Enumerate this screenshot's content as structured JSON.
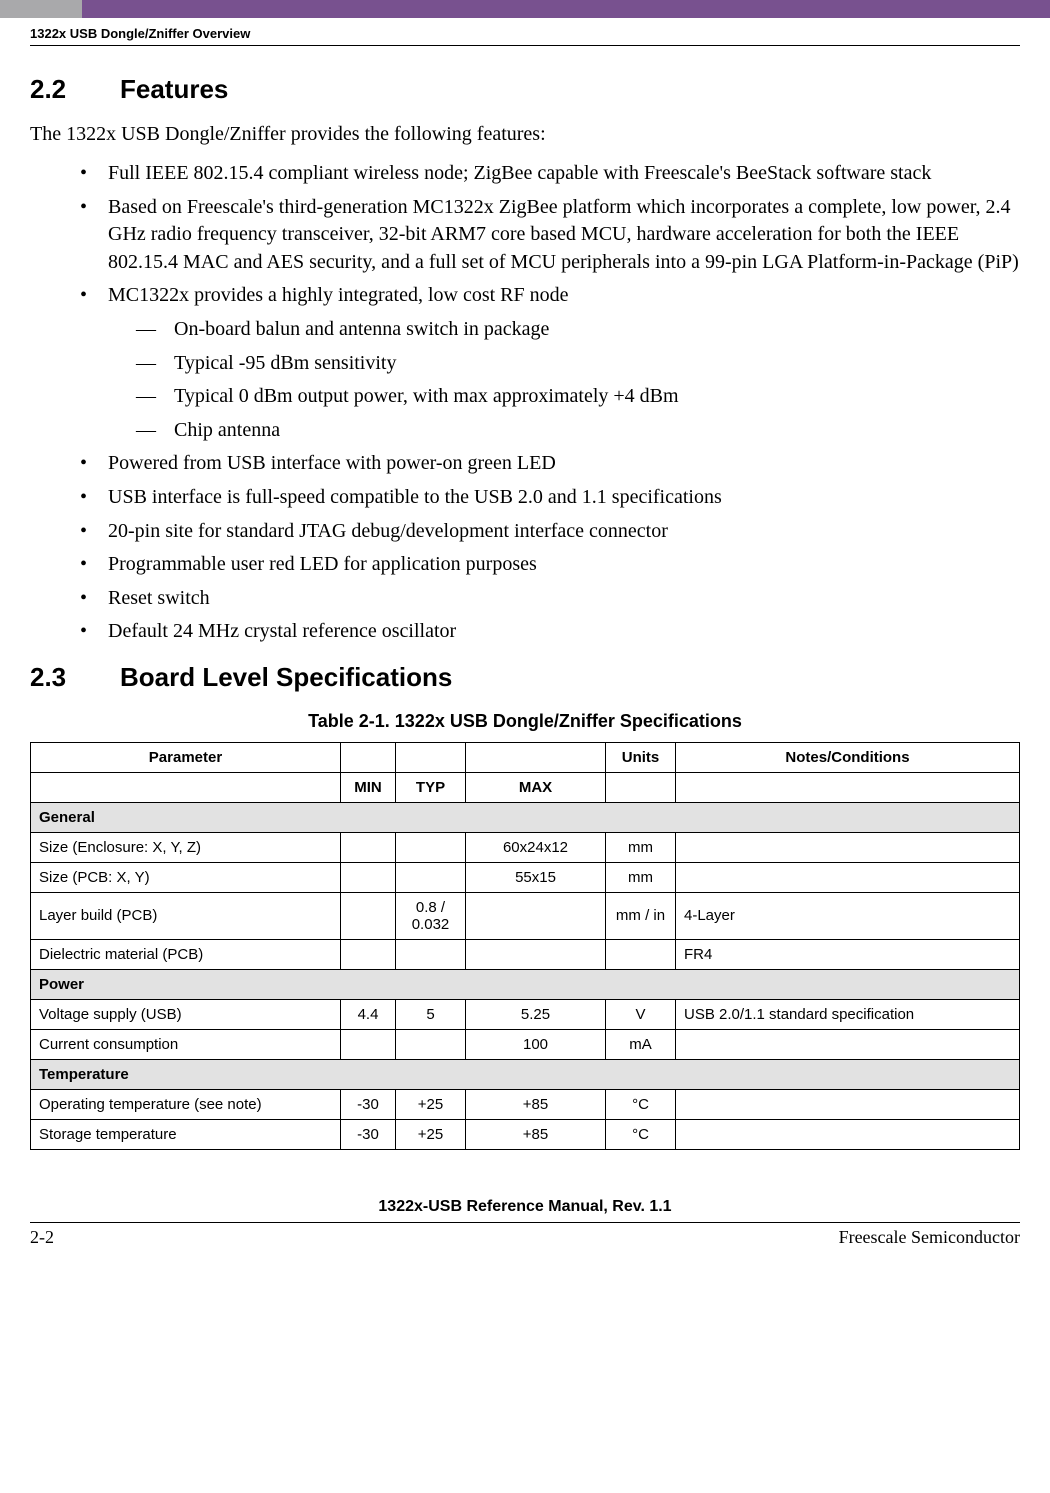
{
  "header": {
    "running_head": "1322x USB Dongle/Zniffer Overview"
  },
  "section_22": {
    "number": "2.2",
    "title": "Features",
    "intro": "The 1322x USB Dongle/Zniffer provides the following features:",
    "bullets": [
      {
        "text": "Full IEEE 802.15.4 compliant wireless node; ZigBee capable with Freescale's BeeStack software stack"
      },
      {
        "text": "Based on Freescale's third-generation MC1322x ZigBee platform which incorporates a complete, low power, 2.4 GHz radio frequency transceiver, 32-bit ARM7 core based MCU, hardware acceleration for both the IEEE 802.15.4 MAC and AES security, and a full set of MCU peripherals into a 99-pin LGA Platform-in-Package (PiP)"
      },
      {
        "text": "MC1322x provides a highly integrated, low cost RF node",
        "sub": [
          "On-board balun and antenna switch in package",
          "Typical -95 dBm sensitivity",
          "Typical 0 dBm output power, with max approximately +4 dBm",
          "Chip antenna"
        ]
      },
      {
        "text": "Powered from USB interface with power-on green LED"
      },
      {
        "text": "USB interface is full-speed compatible to the USB 2.0 and 1.1 specifications"
      },
      {
        "text": "20-pin site for standard JTAG debug/development interface connector"
      },
      {
        "text": "Programmable user red LED for application purposes"
      },
      {
        "text": "Reset switch"
      },
      {
        "text": "Default 24 MHz crystal reference oscillator"
      }
    ]
  },
  "section_23": {
    "number": "2.3",
    "title": "Board Level Specifications",
    "table_caption": "Table 2-1. 1322x USB Dongle/Zniffer Specifications",
    "table": {
      "headers_row1": {
        "parameter": "Parameter",
        "units": "Units",
        "notes": "Notes/Conditions"
      },
      "headers_row2": {
        "min": "MIN",
        "typ": "TYP",
        "max": "MAX"
      },
      "sections": [
        {
          "title": "General",
          "rows": [
            {
              "param": "Size (Enclosure: X, Y, Z)",
              "min": "",
              "typ": "",
              "max": "60x24x12",
              "units": "mm",
              "notes": ""
            },
            {
              "param": "Size (PCB: X, Y)",
              "min": "",
              "typ": "",
              "max": "55x15",
              "units": "mm",
              "notes": ""
            },
            {
              "param": "Layer build (PCB)",
              "min": "",
              "typ": "0.8 / 0.032",
              "max": "",
              "units": "mm / in",
              "notes": "4-Layer"
            },
            {
              "param": "Dielectric material (PCB)",
              "min": "",
              "typ": "",
              "max": "",
              "units": "",
              "notes": "FR4"
            }
          ]
        },
        {
          "title": "Power",
          "rows": [
            {
              "param": "Voltage supply (USB)",
              "min": "4.4",
              "typ": "5",
              "max": "5.25",
              "units": "V",
              "notes": "USB 2.0/1.1 standard specification"
            },
            {
              "param": "Current consumption",
              "min": "",
              "typ": "",
              "max": "100",
              "units": "mA",
              "notes": ""
            }
          ]
        },
        {
          "title": "Temperature",
          "rows": [
            {
              "param": "Operating temperature (see note)",
              "min": "-30",
              "typ": "+25",
              "max": "+85",
              "units": "°C",
              "notes": ""
            },
            {
              "param": "Storage temperature",
              "min": "-30",
              "typ": "+25",
              "max": "+85",
              "units": "°C",
              "notes": ""
            }
          ]
        }
      ]
    }
  },
  "footer": {
    "manual_title": "1322x-USB Reference Manual, Rev. 1.1",
    "page_number": "2-2",
    "company": "Freescale Semiconductor"
  },
  "styling": {
    "band_gray_color": "#a9a9ab",
    "band_purple_color": "#78518f",
    "section_row_bg": "#e2e2e2",
    "body_font": "Times New Roman",
    "heading_font": "Arial",
    "body_fontsize_pt": 15,
    "heading_fontsize_pt": 20,
    "table_fontsize_pt": 11
  }
}
